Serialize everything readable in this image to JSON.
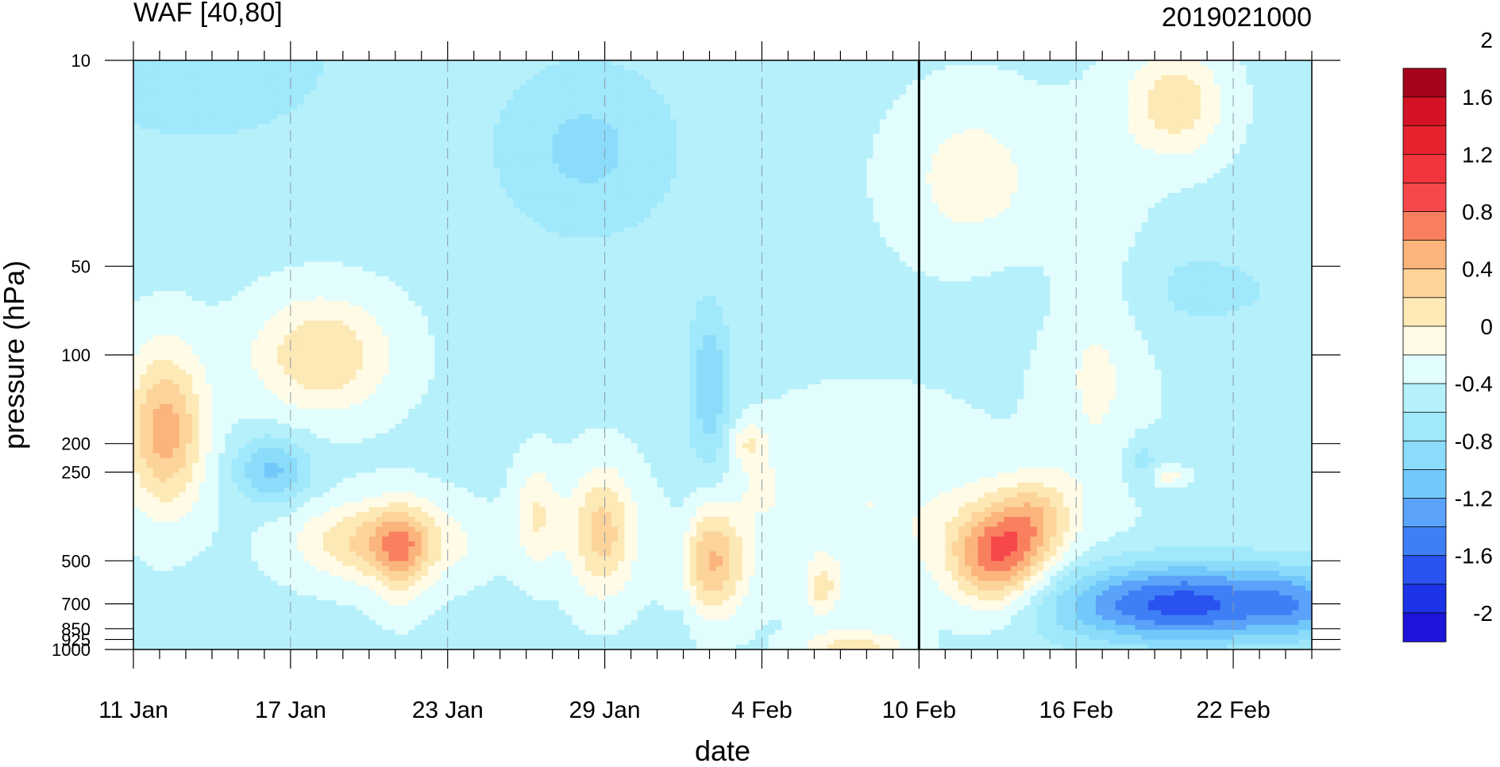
{
  "chart_data": {
    "type": "heatmap",
    "title": "WAF [40,80]",
    "subtitle_right": "2019021000",
    "xlabel": "date",
    "ylabel": "pressure (hPa)",
    "x_ticks": [
      "11 Jan",
      "17 Jan",
      "23 Jan",
      "29 Jan",
      "4 Feb",
      "10 Feb",
      "16 Feb",
      "22 Feb"
    ],
    "x_range_days": [
      0,
      45
    ],
    "marker_date": "10 Feb",
    "y_scale": "log",
    "y_ticks": [
      "10",
      "50",
      "100",
      "200",
      "250",
      "500",
      "700",
      "850",
      "925",
      "1000"
    ],
    "ylim": [
      1000,
      10
    ],
    "colorbar": {
      "levels": [
        -2.2,
        -2.0,
        -1.8,
        -1.6,
        -1.4,
        -1.2,
        -1.0,
        -0.8,
        -0.6,
        -0.4,
        -0.2,
        0.0,
        0.2,
        0.4,
        0.6,
        0.8,
        1.0,
        1.2,
        1.4,
        1.6,
        1.8,
        2.0,
        2.2
      ],
      "labels": [
        "2",
        "1.6",
        "1.2",
        "0.8",
        "0.4",
        "0",
        "-0.4",
        "-0.8",
        "-1.2",
        "-1.6",
        "-2"
      ],
      "colors": [
        "#1f14d9",
        "#1c33e6",
        "#2952f0",
        "#3f7ff5",
        "#5aa2fa",
        "#72c8fa",
        "#8adcfa",
        "#a0e8fb",
        "#b6f0fb",
        "#e2fdfd",
        "#fffbe6",
        "#fde9b6",
        "#fcd49a",
        "#fbb47c",
        "#f9805f",
        "#f6484a",
        "#f0353d",
        "#e6232f",
        "#d41426",
        "#a6041c"
      ]
    },
    "field": {
      "base": -0.45,
      "blobs": [
        {
          "d": 1.2,
          "p": 180,
          "a": 0.95,
          "sd": 1.1,
          "sp": 0.45
        },
        {
          "d": 7.2,
          "p": 100,
          "a": 0.65,
          "sd": 1.9,
          "sp": 0.32
        },
        {
          "d": 5.3,
          "p": 245,
          "a": -0.6,
          "sd": 1.0,
          "sp": 0.18
        },
        {
          "d": 9.5,
          "p": 430,
          "a": 0.75,
          "sd": 2.2,
          "sp": 0.22
        },
        {
          "d": 10.2,
          "p": 480,
          "a": 0.5,
          "sd": 0.7,
          "sp": 0.28
        },
        {
          "d": 17.3,
          "p": 20,
          "a": -0.4,
          "sd": 2.5,
          "sp": 0.5
        },
        {
          "d": 15.4,
          "p": 350,
          "a": 0.45,
          "sd": 0.6,
          "sp": 0.3
        },
        {
          "d": 17.9,
          "p": 400,
          "a": 0.75,
          "sd": 0.9,
          "sp": 0.35
        },
        {
          "d": 22.0,
          "p": 130,
          "a": -0.55,
          "sd": 0.55,
          "sp": 0.45
        },
        {
          "d": 22.1,
          "p": 500,
          "a": 0.85,
          "sd": 0.9,
          "sp": 0.3
        },
        {
          "d": 23.5,
          "p": 200,
          "a": 0.4,
          "sd": 0.5,
          "sp": 0.12
        },
        {
          "d": 24.0,
          "p": 280,
          "a": 0.2,
          "sd": 0.5,
          "sp": 0.15
        },
        {
          "d": 21.0,
          "p": 500,
          "a": -0.15,
          "sd": 0.35,
          "sp": 0.5
        },
        {
          "d": 26.3,
          "p": 620,
          "a": 0.45,
          "sd": 0.45,
          "sp": 0.15
        },
        {
          "d": 27.5,
          "p": 1000,
          "a": 0.6,
          "sd": 1.3,
          "sp": 0.1
        },
        {
          "d": 28.0,
          "p": 320,
          "a": 0.25,
          "sd": 3.5,
          "sp": 0.55
        },
        {
          "d": 33.0,
          "p": 480,
          "a": 1.2,
          "sd": 1.3,
          "sp": 0.28
        },
        {
          "d": 34.5,
          "p": 350,
          "a": 0.55,
          "sd": 1.0,
          "sp": 0.22
        },
        {
          "d": 32.0,
          "p": 25,
          "a": 0.35,
          "sd": 2.0,
          "sp": 0.45
        },
        {
          "d": 36.8,
          "p": 90,
          "a": 0.3,
          "sd": 1.4,
          "sp": 1.0
        },
        {
          "d": 39.5,
          "p": 258,
          "a": 0.35,
          "sd": 0.5,
          "sp": 0.05
        },
        {
          "d": 38.5,
          "p": 230,
          "a": -0.3,
          "sd": 0.5,
          "sp": 0.15
        },
        {
          "d": 39.8,
          "p": 14,
          "a": 0.6,
          "sd": 1.3,
          "sp": 0.3
        },
        {
          "d": 40.0,
          "p": 700,
          "a": -1.25,
          "sd": 3.5,
          "sp": 0.22
        },
        {
          "d": 44.5,
          "p": 700,
          "a": -0.4,
          "sd": 1.2,
          "sp": 0.2
        },
        {
          "d": 2.5,
          "p": 10,
          "a": -0.3,
          "sd": 4.0,
          "sp": 0.5
        },
        {
          "d": 40.0,
          "p": 60,
          "a": -0.2,
          "sd": 4.0,
          "sp": 0.3
        }
      ]
    }
  }
}
